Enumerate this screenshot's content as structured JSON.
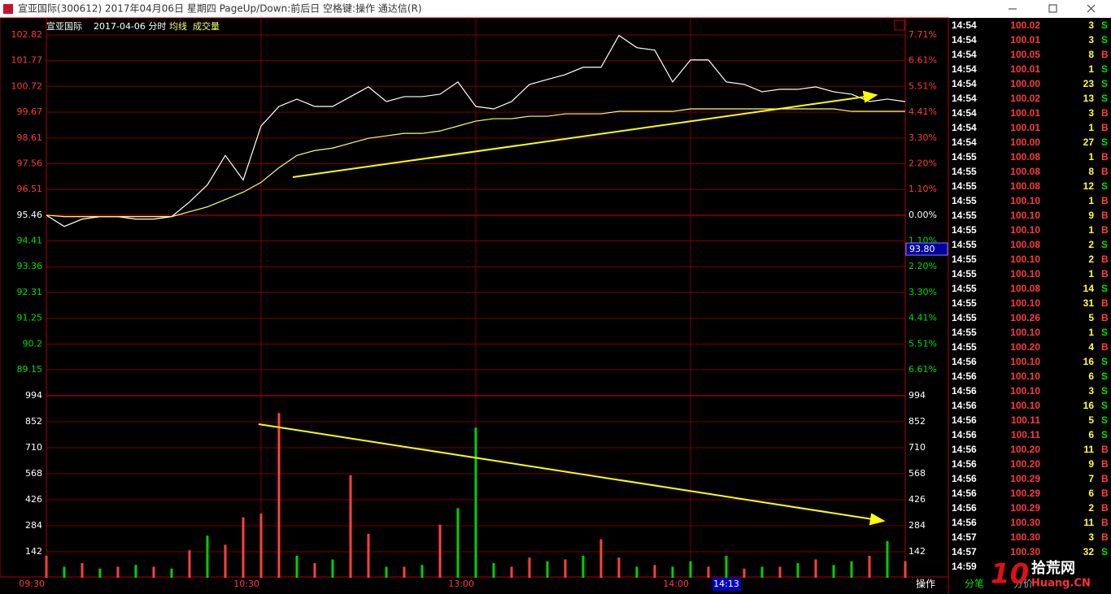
{
  "window": {
    "title": "宣亚国际(300612) 2017年04月06日 星期四 PageUp/Down:前后日 空格键:操作 通达信(R)"
  },
  "chart_header": {
    "name": "宣亚国际",
    "date": "2017-04-06 分时"
  },
  "chart_data": {
    "type": "line",
    "categories": [
      "09:30",
      null,
      null,
      null,
      null,
      null,
      null,
      null,
      null,
      null,
      null,
      null,
      "10:30",
      null,
      null,
      null,
      null,
      null,
      null,
      null,
      null,
      null,
      null,
      null,
      "13:00",
      null,
      null,
      null,
      null,
      null,
      null,
      null,
      null,
      null,
      null,
      null,
      "14:00",
      null,
      null,
      null,
      null,
      null,
      null,
      null,
      null,
      null,
      null,
      null,
      null
    ],
    "series": [
      {
        "color": "#ffffff",
        "values": [
          95.46,
          95.0,
          95.3,
          95.4,
          95.4,
          95.3,
          95.3,
          95.4,
          96.0,
          96.7,
          97.9,
          96.9,
          99.1,
          99.9,
          100.2,
          99.9,
          99.9,
          100.3,
          100.7,
          100.1,
          100.3,
          100.3,
          100.4,
          100.9,
          99.9,
          99.8,
          100.1,
          100.8,
          101.0,
          101.2,
          101.5,
          101.5,
          102.8,
          102.3,
          102.2,
          100.9,
          101.8,
          101.8,
          100.9,
          100.8,
          100.5,
          100.6,
          100.6,
          100.7,
          100.5,
          100.4,
          100.1,
          100.2,
          100.1
        ]
      },
      {
        "name": "均线",
        "color": "#ffff66",
        "values": [
          95.46,
          95.4,
          95.4,
          95.4,
          95.4,
          95.4,
          95.4,
          95.4,
          95.6,
          95.8,
          96.1,
          96.4,
          96.8,
          97.4,
          97.9,
          98.1,
          98.2,
          98.4,
          98.6,
          98.7,
          98.8,
          98.8,
          98.9,
          99.1,
          99.3,
          99.4,
          99.4,
          99.5,
          99.5,
          99.6,
          99.6,
          99.6,
          99.7,
          99.7,
          99.7,
          99.7,
          99.8,
          99.8,
          99.8,
          99.8,
          99.8,
          99.8,
          99.8,
          99.8,
          99.8,
          99.7,
          99.7,
          99.7,
          99.7
        ]
      },
      {
        "name": "成交量",
        "type": "bar",
        "axis": "volume",
        "values": [
          120,
          60,
          80,
          50,
          60,
          70,
          60,
          50,
          150,
          230,
          180,
          330,
          350,
          900,
          120,
          80,
          100,
          560,
          240,
          60,
          60,
          70,
          290,
          380,
          820,
          80,
          60,
          110,
          90,
          100,
          120,
          210,
          110,
          60,
          70,
          60,
          90,
          60,
          120,
          50,
          60,
          60,
          80,
          100,
          70,
          90,
          120,
          200,
          90
        ],
        "colors": [
          "#ff4040",
          "#00d000",
          "#ff4040",
          "#00d000",
          "#ff4040",
          "#00d000",
          "#ff4040",
          "#00d000",
          "#ff4040",
          "#00d000",
          "#ff4040",
          "#ff4040",
          "#ff4040",
          "#ff4040",
          "#00d000",
          "#ff4040",
          "#00d000",
          "#ff4040",
          "#ff4040",
          "#00d000",
          "#ff4040",
          "#00d000",
          "#ff4040",
          "#00d000",
          "#00d000",
          "#00d000",
          "#ff4040",
          "#ff4040",
          "#00d000",
          "#ff4040",
          "#00d000",
          "#ff4040",
          "#ff4040",
          "#00d000",
          "#ff4040",
          "#00d000",
          "#00d000",
          "#ff4040",
          "#00d000",
          "#ff4040",
          "#00d000",
          "#ff4040",
          "#00d000",
          "#ff4040",
          "#00d000",
          "#00d000",
          "#ff4040",
          "#00d000",
          "#ff4040"
        ]
      }
    ],
    "ylim": [
      89.15,
      102.82
    ],
    "yticks": [
      102.82,
      101.77,
      100.72,
      99.67,
      98.61,
      97.56,
      96.51,
      95.46,
      94.41,
      93.36,
      92.31,
      91.25,
      90.2,
      89.15
    ],
    "y2lim": [
      -6.61,
      7.71
    ],
    "y2ticks": [
      {
        "value": 7.71,
        "label": "7.71%"
      },
      {
        "value": 6.61,
        "label": "6.61%"
      },
      {
        "value": 5.51,
        "label": "5.51%"
      },
      {
        "value": 4.41,
        "label": "4.41%"
      },
      {
        "value": 3.3,
        "label": "3.30%"
      },
      {
        "value": 2.2,
        "label": "2.20%"
      },
      {
        "value": 1.1,
        "label": "1.10%"
      },
      {
        "value": 0,
        "label": "0.00%"
      },
      {
        "value": -1.1,
        "label": "1.10%"
      },
      {
        "value": -2.2,
        "label": "2.20%"
      },
      {
        "value": -3.3,
        "label": "3.30%"
      },
      {
        "value": -4.41,
        "label": "4.41%"
      },
      {
        "value": -5.51,
        "label": "5.51%"
      },
      {
        "value": -6.61,
        "label": "6.61%"
      }
    ],
    "volume_lim": [
      0,
      994
    ],
    "volume_ticks": [
      994,
      852,
      710,
      568,
      426,
      284,
      142
    ],
    "up_color": "#ff3a3a",
    "down_color": "#00e000",
    "flat_color": "#ffffff",
    "grid_color": "#7a0000"
  },
  "cursor": {
    "time": "14:13",
    "price": "93.80"
  },
  "trades": {
    "side_colors": {
      "S": "#00e000",
      "B": "#ff4040"
    },
    "rows": [
      [
        "14:54",
        "100.02",
        3,
        "S"
      ],
      [
        "14:54",
        "100.01",
        3,
        "S"
      ],
      [
        "14:54",
        "100.05",
        8,
        "B"
      ],
      [
        "14:54",
        "100.01",
        1,
        "S"
      ],
      [
        "14:54",
        "100.00",
        23,
        "S"
      ],
      [
        "14:54",
        "100.02",
        13,
        "S"
      ],
      [
        "14:54",
        "100.01",
        3,
        "B"
      ],
      [
        "14:54",
        "100.01",
        1,
        "B"
      ],
      [
        "14:54",
        "100.00",
        27,
        "S"
      ],
      [
        "14:55",
        "100.08",
        1,
        "B"
      ],
      [
        "14:55",
        "100.08",
        8,
        "B"
      ],
      [
        "14:55",
        "100.08",
        12,
        "S"
      ],
      [
        "14:55",
        "100.10",
        1,
        "B"
      ],
      [
        "14:55",
        "100.10",
        9,
        "B"
      ],
      [
        "14:55",
        "100.10",
        1,
        "B"
      ],
      [
        "14:55",
        "100.08",
        2,
        "S"
      ],
      [
        "14:55",
        "100.10",
        2,
        "B"
      ],
      [
        "14:55",
        "100.10",
        1,
        "B"
      ],
      [
        "14:55",
        "100.08",
        14,
        "S"
      ],
      [
        "14:55",
        "100.10",
        31,
        "B"
      ],
      [
        "14:55",
        "100.26",
        5,
        "B"
      ],
      [
        "14:55",
        "100.10",
        1,
        "S"
      ],
      [
        "14:55",
        "100.20",
        4,
        "B"
      ],
      [
        "14:56",
        "100.10",
        16,
        "S"
      ],
      [
        "14:56",
        "100.10",
        6,
        "S"
      ],
      [
        "14:56",
        "100.10",
        3,
        "S"
      ],
      [
        "14:56",
        "100.10",
        16,
        "S"
      ],
      [
        "14:56",
        "100.11",
        5,
        "S"
      ],
      [
        "14:56",
        "100.11",
        6,
        "S"
      ],
      [
        "14:56",
        "100.20",
        11,
        "B"
      ],
      [
        "14:56",
        "100.20",
        9,
        "B"
      ],
      [
        "14:56",
        "100.29",
        7,
        "B"
      ],
      [
        "14:56",
        "100.29",
        6,
        "B"
      ],
      [
        "14:56",
        "100.29",
        2,
        "B"
      ],
      [
        "14:56",
        "100.30",
        11,
        "B"
      ],
      [
        "14:57",
        "100.30",
        3,
        "B"
      ],
      [
        "14:57",
        "100.30",
        32,
        "S"
      ]
    ],
    "last_time": "14:59"
  },
  "tabs": [
    "操作",
    "分笔",
    "分价"
  ],
  "watermark": {
    "number": "10",
    "name": "拾荒网",
    "site": "Huang.CN"
  }
}
